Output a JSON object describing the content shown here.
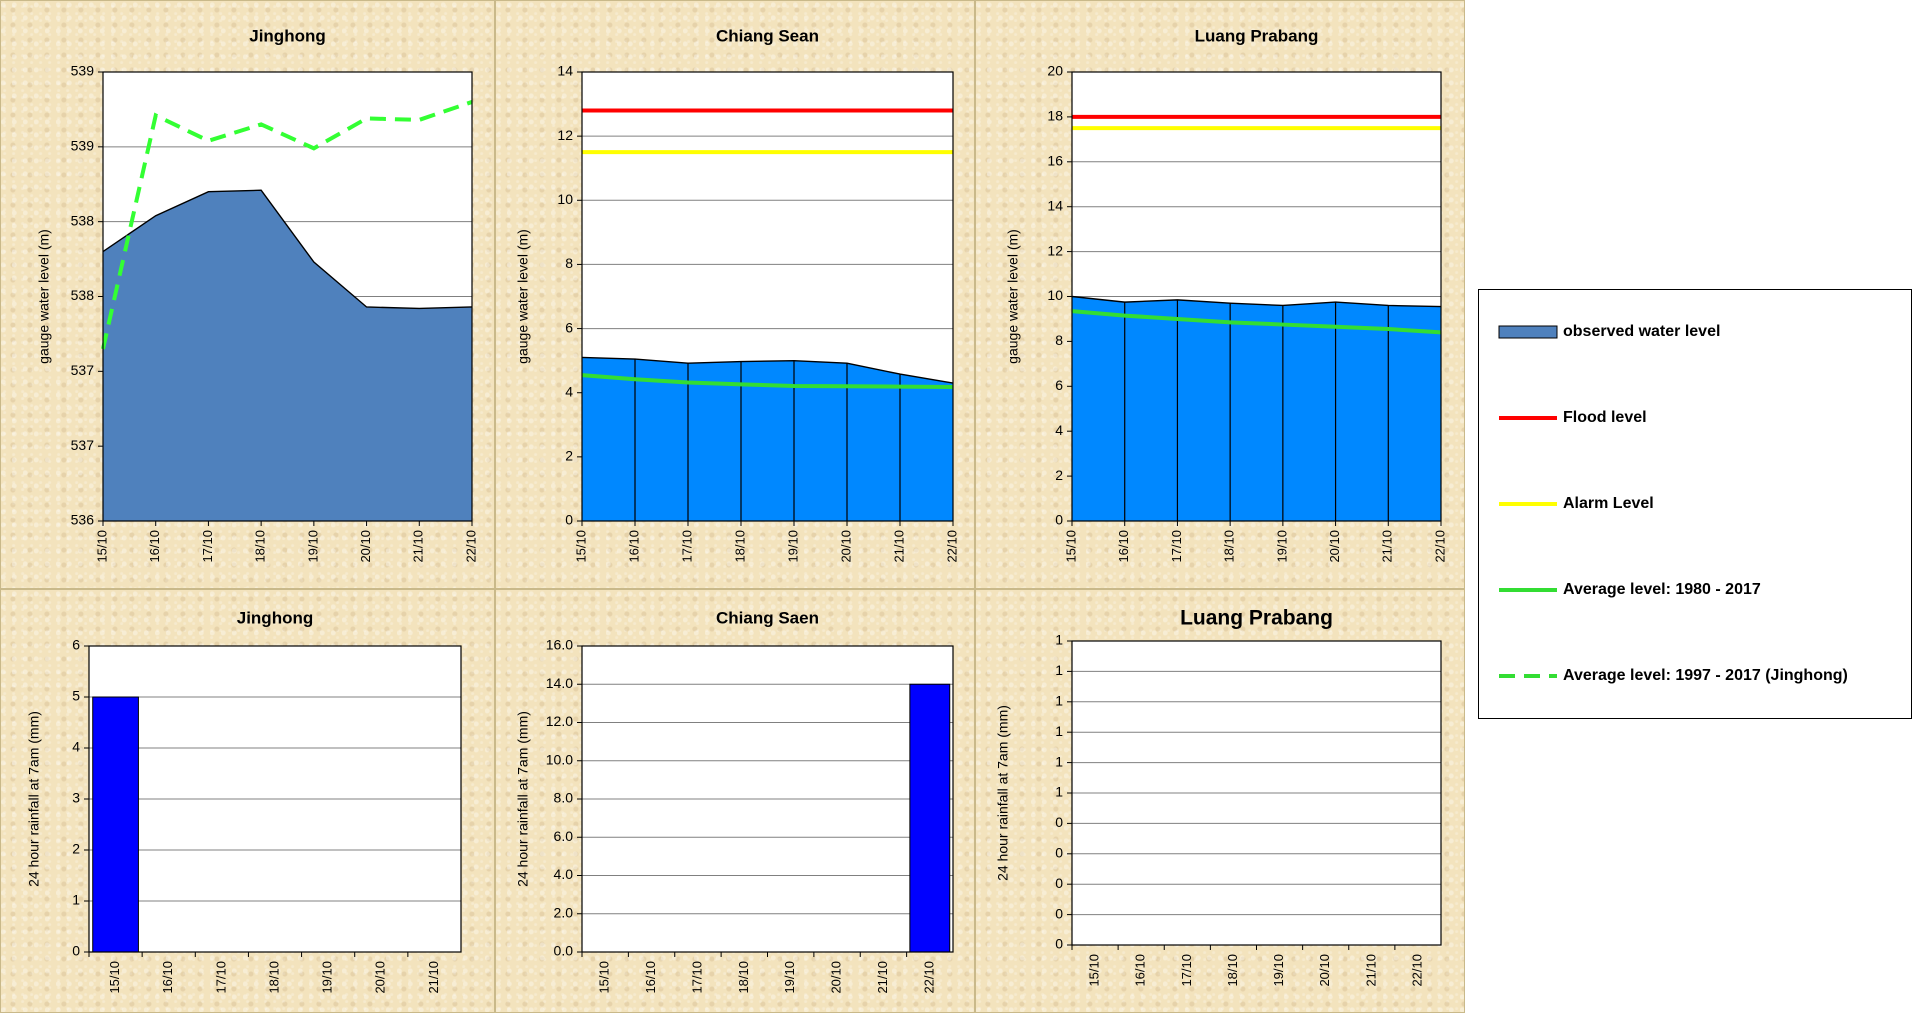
{
  "chart_data": [
    {
      "type": "area",
      "title": "Jinghong",
      "xlabel": "",
      "ylabel": "gauge  water level (m)",
      "categories": [
        "15/10",
        "16/10",
        "17/10",
        "18/10",
        "19/10",
        "20/10",
        "21/10",
        "22/10"
      ],
      "ylim": [
        536,
        539
      ],
      "ytick_values": [
        536,
        536.5,
        537,
        537.5,
        538,
        538.5,
        539
      ],
      "ytick_labels": [
        "536",
        "537",
        "537",
        "538",
        "538",
        "539",
        "539"
      ],
      "series": [
        {
          "name": "observed water level",
          "kind": "area",
          "color": "#4f81bd",
          "values": [
            537.8,
            538.04,
            538.2,
            538.21,
            537.73,
            537.43,
            537.42,
            537.43
          ]
        },
        {
          "name": "Average level:  1997 - 2017 (Jinghong)",
          "kind": "dashed-line",
          "color": "#33ff33",
          "values": [
            537.15,
            538.71,
            538.54,
            538.65,
            538.49,
            538.69,
            538.68,
            538.8
          ]
        }
      ],
      "grid": true
    },
    {
      "type": "area",
      "title": "Chiang Sean",
      "xlabel": "",
      "ylabel": "gauge  water level (m)",
      "categories": [
        "15/10",
        "16/10",
        "17/10",
        "18/10",
        "19/10",
        "20/10",
        "21/10",
        "22/10"
      ],
      "ylim": [
        0,
        14
      ],
      "ytick_values": [
        0,
        2,
        4,
        6,
        8,
        10,
        12,
        14
      ],
      "ytick_labels": [
        "0",
        "2",
        "4",
        "6",
        "8",
        "10",
        "12",
        "14"
      ],
      "series": [
        {
          "name": "observed water level",
          "kind": "area",
          "color": "#0088ff",
          "values": [
            5.1,
            5.05,
            4.92,
            4.97,
            5.0,
            4.92,
            4.58,
            4.3
          ]
        },
        {
          "name": "Flood level",
          "kind": "line",
          "color": "#ff0000",
          "values": [
            12.8,
            12.8,
            12.8,
            12.8,
            12.8,
            12.8,
            12.8,
            12.8
          ]
        },
        {
          "name": "Alarm Level",
          "kind": "line",
          "color": "#ffff00",
          "values": [
            11.5,
            11.5,
            11.5,
            11.5,
            11.5,
            11.5,
            11.5,
            11.5
          ]
        },
        {
          "name": "Average level: 1980 - 2017",
          "kind": "line",
          "color": "#33dd33",
          "values": [
            4.55,
            4.42,
            4.32,
            4.26,
            4.21,
            4.2,
            4.19,
            4.18
          ]
        }
      ],
      "grid": true
    },
    {
      "type": "area",
      "title": "Luang Prabang",
      "xlabel": "",
      "ylabel": "gauge  water level (m)",
      "categories": [
        "15/10",
        "16/10",
        "17/10",
        "18/10",
        "19/10",
        "20/10",
        "21/10",
        "22/10"
      ],
      "ylim": [
        0,
        20
      ],
      "ytick_values": [
        0,
        2,
        4,
        6,
        8,
        10,
        12,
        14,
        16,
        18,
        20
      ],
      "ytick_labels": [
        "0",
        "2",
        "4",
        "6",
        "8",
        "10",
        "12",
        "14",
        "16",
        "18",
        "20"
      ],
      "series": [
        {
          "name": "observed water level",
          "kind": "area",
          "color": "#0088ff",
          "values": [
            10.0,
            9.75,
            9.85,
            9.7,
            9.6,
            9.75,
            9.6,
            9.55
          ]
        },
        {
          "name": "Flood level",
          "kind": "line",
          "color": "#ff0000",
          "values": [
            18.0,
            18.0,
            18.0,
            18.0,
            18.0,
            18.0,
            18.0,
            18.0
          ]
        },
        {
          "name": "Alarm Level",
          "kind": "line",
          "color": "#ffff00",
          "values": [
            17.5,
            17.5,
            17.5,
            17.5,
            17.5,
            17.5,
            17.5,
            17.5
          ]
        },
        {
          "name": "Average level: 1980 - 2017",
          "kind": "line",
          "color": "#33dd33",
          "values": [
            9.35,
            9.15,
            9.0,
            8.85,
            8.75,
            8.65,
            8.55,
            8.4
          ]
        }
      ],
      "grid": true
    },
    {
      "type": "bar",
      "title": "Jinghong",
      "xlabel": "",
      "ylabel": "24 hour rainfall at 7am (mm)",
      "categories": [
        "15/10",
        "16/10",
        "17/10",
        "18/10",
        "19/10",
        "20/10",
        "21/10"
      ],
      "values": [
        5,
        0,
        0,
        0,
        0,
        0,
        0
      ],
      "bar_color": "#0000ff",
      "ylim": [
        0,
        6
      ],
      "ytick_values": [
        0,
        1,
        2,
        3,
        4,
        5,
        6
      ],
      "ytick_labels": [
        "0",
        "1",
        "2",
        "3",
        "4",
        "5",
        "6"
      ],
      "grid": true
    },
    {
      "type": "bar",
      "title": "Chiang Saen",
      "xlabel": "",
      "ylabel": "24 hour rainfall at 7am (mm)",
      "categories": [
        "15/10",
        "16/10",
        "17/10",
        "18/10",
        "19/10",
        "20/10",
        "21/10",
        "22/10"
      ],
      "values": [
        0,
        0,
        0,
        0,
        0,
        0,
        0,
        14.0
      ],
      "bar_color": "#0000ff",
      "ylim": [
        0,
        16
      ],
      "ytick_values": [
        0,
        2,
        4,
        6,
        8,
        10,
        12,
        14,
        16
      ],
      "ytick_labels": [
        "0.0",
        "2.0",
        "4.0",
        "6.0",
        "8.0",
        "10.0",
        "12.0",
        "14.0",
        "16.0"
      ],
      "grid": true
    },
    {
      "type": "bar",
      "title": "Luang Prabang",
      "xlabel": "",
      "ylabel": "24 hour rainfall at 7am (mm)",
      "categories": [
        "15/10",
        "16/10",
        "17/10",
        "18/10",
        "19/10",
        "20/10",
        "21/10",
        "22/10"
      ],
      "values": [
        0,
        0,
        0,
        0,
        0,
        0,
        0,
        0
      ],
      "bar_color": "#0000ff",
      "ylim": [
        0,
        1
      ],
      "ytick_values": [
        0,
        0.1,
        0.2,
        0.3,
        0.4,
        0.5,
        0.6,
        0.7,
        0.8,
        0.9,
        1.0
      ],
      "ytick_labels": [
        "0",
        "0",
        "0",
        "0",
        "0",
        "1",
        "1",
        "1",
        "1",
        "1",
        "1"
      ],
      "grid": true
    }
  ],
  "legend": {
    "items": [
      {
        "label": "observed water level",
        "swatch": "box",
        "color": "#4f81bd"
      },
      {
        "label": "Flood level",
        "swatch": "line",
        "color": "#ff0000"
      },
      {
        "label": "Alarm Level",
        "swatch": "line",
        "color": "#ffff00"
      },
      {
        "label": "Average level: 1980 - 2017",
        "swatch": "line",
        "color": "#33dd33"
      },
      {
        "label": "Average level:  1997 - 2017 (Jinghong)",
        "swatch": "dashed",
        "color": "#33dd33"
      }
    ]
  }
}
